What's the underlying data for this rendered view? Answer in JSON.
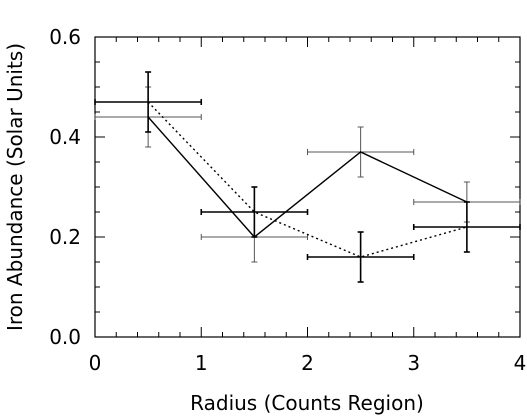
{
  "chart_data": {
    "type": "line",
    "title": "",
    "xlabel": "Radius (Counts Region)",
    "ylabel": "Iron Abundance (Solar Units)",
    "xlim": [
      0,
      4
    ],
    "ylim": [
      0,
      0.6
    ],
    "xticks": [
      {
        "value": 0,
        "label": "0"
      },
      {
        "value": 1,
        "label": "1"
      },
      {
        "value": 2,
        "label": "2"
      },
      {
        "value": 3,
        "label": "3"
      },
      {
        "value": 4,
        "label": "4"
      }
    ],
    "yticks": [
      {
        "value": 0,
        "label": "0.0"
      },
      {
        "value": 0.2,
        "label": "0.2"
      },
      {
        "value": 0.4,
        "label": "0.4"
      },
      {
        "value": 0.6,
        "label": "0.6"
      }
    ],
    "grid": false,
    "legend": "none",
    "series": [
      {
        "style": "solid",
        "color": "#000000",
        "x": [
          0.5,
          1.5,
          2.5,
          3.5
        ],
        "y": [
          0.44,
          0.2,
          0.37,
          0.27
        ],
        "xerr": [
          0.5,
          0.5,
          0.5,
          0.5
        ],
        "yerr": [
          0.06,
          0.05,
          0.05,
          0.04
        ],
        "errorbar_color": "#555555"
      },
      {
        "style": "dotted",
        "color": "#000000",
        "x": [
          0.5,
          1.5,
          2.5,
          3.5
        ],
        "y": [
          0.47,
          0.25,
          0.16,
          0.22
        ],
        "xerr": [
          0.5,
          0.5,
          0.5,
          0.5
        ],
        "yerr": [
          0.06,
          0.05,
          0.05,
          0.05
        ],
        "errorbar_color": "#000000"
      }
    ]
  }
}
